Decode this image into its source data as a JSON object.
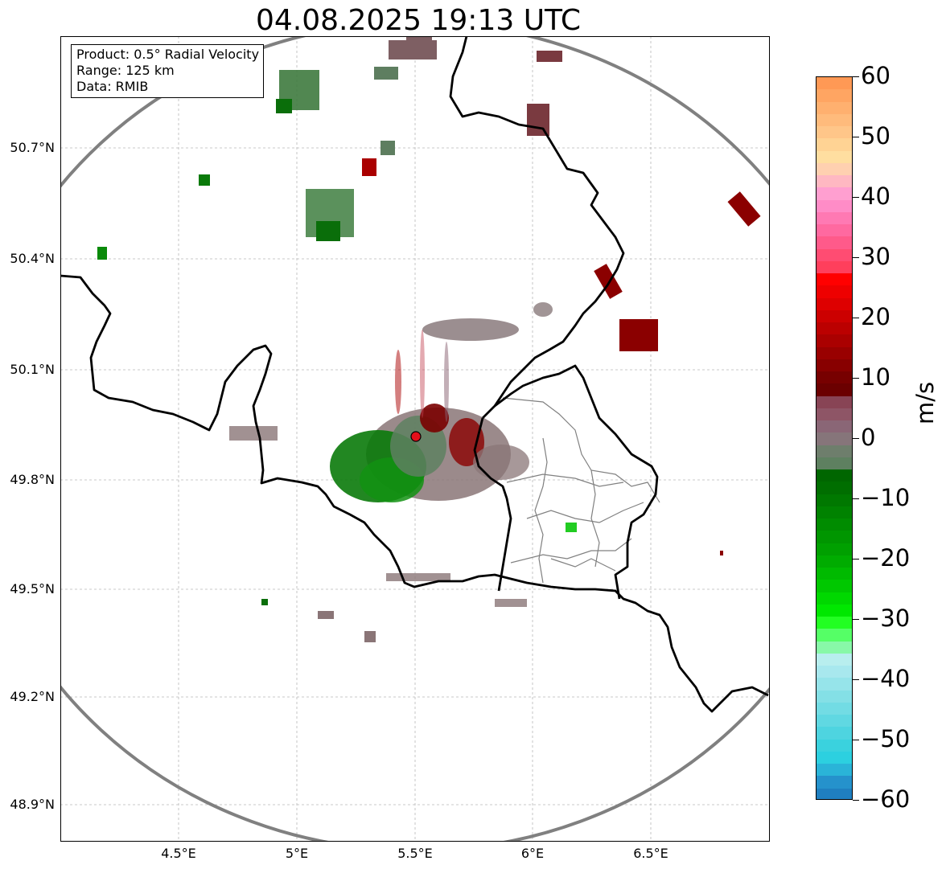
{
  "title": "04.08.2025 19:13 UTC",
  "info_box": {
    "product": "Product: 0.5° Radial Velocity",
    "range": "Range: 125 km",
    "data": "Data: RMIB"
  },
  "axes": {
    "lat_labels": [
      "50.7°N",
      "50.4°N",
      "50.1°N",
      "49.8°N",
      "49.5°N",
      "49.2°N",
      "48.9°N"
    ],
    "lon_labels": [
      "4.5°E",
      "5°E",
      "5.5°E",
      "6°E",
      "6.5°E"
    ]
  },
  "map": {
    "radar_site": "radar-site-marker",
    "range_ring_color": "#808080",
    "border_color": "#000000",
    "admin_border_color": "#808080",
    "radar_marker_color": "#e3101a"
  },
  "colorbar": {
    "unit": "m/s",
    "min": -60,
    "max": 60,
    "tick_labels": [
      "60",
      "50",
      "40",
      "30",
      "20",
      "10",
      "0",
      "−10",
      "−20",
      "−30",
      "−40",
      "−50",
      "−60"
    ],
    "colors_top_to_bottom": [
      "#ff9955",
      "#ffa562",
      "#ffb06f",
      "#ffbb7c",
      "#ffc689",
      "#ffd394",
      "#ffdea0",
      "#ffd0b0",
      "#ffb8c2",
      "#ff9fd0",
      "#ff8cc7",
      "#ff79b3",
      "#ff69a0",
      "#ff5a8a",
      "#ff4c72",
      "#ff3f5c",
      "#ff0000",
      "#ee0000",
      "#de0000",
      "#cc0000",
      "#bb0000",
      "#aa0000",
      "#990000",
      "#880000",
      "#770000",
      "#6b0000",
      "#884455",
      "#8e5566",
      "#8a6676",
      "#86757a",
      "#6e7e6c",
      "#5e8060",
      "#006600",
      "#006e00",
      "#007800",
      "#008200",
      "#008c00",
      "#009600",
      "#00a000",
      "#00ac00",
      "#00ba00",
      "#00c800",
      "#00d800",
      "#00e800",
      "#22ff22",
      "#55ff66",
      "#88f8a8",
      "#b8eeee",
      "#a8e8ee",
      "#96e4ea",
      "#84e0e6",
      "#72dce4",
      "#60d8e2",
      "#4ed4e0",
      "#3ad2de",
      "#2cd0e0",
      "#2ab4d8",
      "#2592cc",
      "#1f7fc0"
    ]
  }
}
